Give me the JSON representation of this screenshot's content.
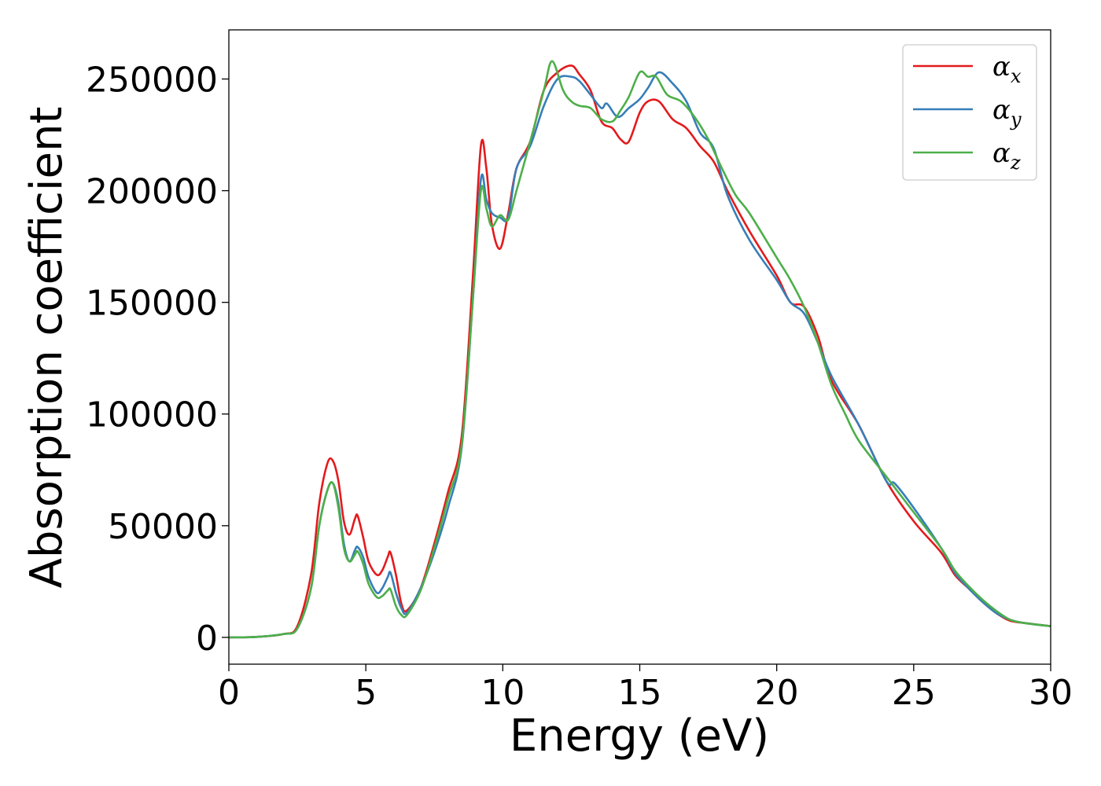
{
  "chart_data": {
    "type": "line",
    "title": "",
    "xlabel": "Energy (eV)",
    "ylabel": "Absorption coefficient",
    "xlim": [
      0,
      30
    ],
    "ylim": [
      -12000,
      272000
    ],
    "xticks": [
      0,
      5,
      10,
      15,
      20,
      25,
      30
    ],
    "yticks": [
      0,
      50000,
      100000,
      150000,
      200000,
      250000
    ],
    "grid": false,
    "legend_position": "top-right",
    "series": [
      {
        "name": "α",
        "name_subscript": "x",
        "color": "#e41a1c",
        "points": [
          [
            0,
            0
          ],
          [
            1,
            200
          ],
          [
            2,
            1500
          ],
          [
            2.5,
            5000
          ],
          [
            3,
            28000
          ],
          [
            3.3,
            60000
          ],
          [
            3.6,
            78000
          ],
          [
            3.8,
            79000
          ],
          [
            4,
            70000
          ],
          [
            4.2,
            52000
          ],
          [
            4.4,
            46000
          ],
          [
            4.6,
            53000
          ],
          [
            4.7,
            54500
          ],
          [
            4.9,
            45000
          ],
          [
            5.1,
            34000
          ],
          [
            5.4,
            28000
          ],
          [
            5.6,
            30000
          ],
          [
            5.8,
            36000
          ],
          [
            5.9,
            38000
          ],
          [
            6.1,
            28000
          ],
          [
            6.3,
            15000
          ],
          [
            6.5,
            12000
          ],
          [
            7,
            22000
          ],
          [
            7.5,
            42000
          ],
          [
            8,
            65000
          ],
          [
            8.5,
            90000
          ],
          [
            8.9,
            160000
          ],
          [
            9.2,
            220000
          ],
          [
            9.4,
            210000
          ],
          [
            9.6,
            185000
          ],
          [
            9.9,
            174000
          ],
          [
            10.2,
            190000
          ],
          [
            10.5,
            210000
          ],
          [
            11,
            222000
          ],
          [
            11.5,
            245000
          ],
          [
            12,
            253000
          ],
          [
            12.5,
            256000
          ],
          [
            12.8,
            252000
          ],
          [
            13.2,
            245000
          ],
          [
            13.6,
            231000
          ],
          [
            14,
            228000
          ],
          [
            14.3,
            223000
          ],
          [
            14.6,
            222000
          ],
          [
            15,
            235000
          ],
          [
            15.3,
            240000
          ],
          [
            15.7,
            240000
          ],
          [
            16.2,
            232000
          ],
          [
            16.7,
            228000
          ],
          [
            17.2,
            220000
          ],
          [
            17.7,
            213000
          ],
          [
            18.2,
            200000
          ],
          [
            19,
            182000
          ],
          [
            20,
            162000
          ],
          [
            20.5,
            150000
          ],
          [
            21,
            148000
          ],
          [
            21.5,
            135000
          ],
          [
            22,
            115000
          ],
          [
            23,
            95000
          ],
          [
            24,
            70000
          ],
          [
            25,
            52000
          ],
          [
            26,
            38000
          ],
          [
            26.5,
            28000
          ],
          [
            27,
            22000
          ],
          [
            27.5,
            16000
          ],
          [
            28,
            11000
          ],
          [
            28.5,
            7500
          ],
          [
            29,
            6500
          ],
          [
            30,
            5000
          ]
        ]
      },
      {
        "name": "α",
        "name_subscript": "y",
        "color": "#377eb8",
        "points": [
          [
            0,
            0
          ],
          [
            1,
            200
          ],
          [
            2,
            1500
          ],
          [
            2.5,
            4000
          ],
          [
            3,
            22000
          ],
          [
            3.3,
            50000
          ],
          [
            3.6,
            66000
          ],
          [
            3.8,
            69000
          ],
          [
            4,
            60000
          ],
          [
            4.2,
            42000
          ],
          [
            4.4,
            34000
          ],
          [
            4.6,
            39000
          ],
          [
            4.7,
            40500
          ],
          [
            4.9,
            36000
          ],
          [
            5.1,
            27000
          ],
          [
            5.4,
            20000
          ],
          [
            5.6,
            22000
          ],
          [
            5.8,
            27000
          ],
          [
            5.9,
            29000
          ],
          [
            6.1,
            20000
          ],
          [
            6.3,
            13000
          ],
          [
            6.5,
            11000
          ],
          [
            7,
            22000
          ],
          [
            7.5,
            38000
          ],
          [
            8,
            58000
          ],
          [
            8.5,
            85000
          ],
          [
            8.9,
            150000
          ],
          [
            9.2,
            205000
          ],
          [
            9.4,
            196000
          ],
          [
            9.6,
            190000
          ],
          [
            9.9,
            188000
          ],
          [
            10.2,
            188000
          ],
          [
            10.5,
            210000
          ],
          [
            11,
            220000
          ],
          [
            11.5,
            238000
          ],
          [
            12,
            250000
          ],
          [
            12.5,
            251000
          ],
          [
            12.8,
            249000
          ],
          [
            13.2,
            243000
          ],
          [
            13.6,
            237000
          ],
          [
            13.8,
            239000
          ],
          [
            14.2,
            233000
          ],
          [
            14.6,
            237000
          ],
          [
            15,
            241000
          ],
          [
            15.3,
            246000
          ],
          [
            15.7,
            253000
          ],
          [
            16.2,
            248000
          ],
          [
            16.7,
            240000
          ],
          [
            17.2,
            226000
          ],
          [
            17.7,
            219000
          ],
          [
            18.2,
            198000
          ],
          [
            19,
            178000
          ],
          [
            20,
            160000
          ],
          [
            20.5,
            150000
          ],
          [
            21,
            145000
          ],
          [
            21.5,
            132000
          ],
          [
            22,
            117000
          ],
          [
            23,
            95000
          ],
          [
            24,
            70000
          ],
          [
            24.3,
            69000
          ],
          [
            25,
            58000
          ],
          [
            26,
            40000
          ],
          [
            26.5,
            29000
          ],
          [
            27,
            22000
          ],
          [
            27.5,
            16000
          ],
          [
            28,
            11000
          ],
          [
            28.5,
            8000
          ],
          [
            29,
            6500
          ],
          [
            30,
            5000
          ]
        ]
      },
      {
        "name": "α",
        "name_subscript": "z",
        "color": "#4daf4a",
        "points": [
          [
            0,
            0
          ],
          [
            1,
            200
          ],
          [
            2,
            1500
          ],
          [
            2.5,
            4000
          ],
          [
            3,
            22000
          ],
          [
            3.3,
            50000
          ],
          [
            3.6,
            66000
          ],
          [
            3.8,
            69000
          ],
          [
            4,
            58000
          ],
          [
            4.2,
            40000
          ],
          [
            4.4,
            34000
          ],
          [
            4.6,
            37000
          ],
          [
            4.7,
            38500
          ],
          [
            4.9,
            33000
          ],
          [
            5.1,
            24000
          ],
          [
            5.4,
            18000
          ],
          [
            5.6,
            18500
          ],
          [
            5.8,
            21000
          ],
          [
            5.9,
            21500
          ],
          [
            6.1,
            14000
          ],
          [
            6.3,
            10000
          ],
          [
            6.5,
            10000
          ],
          [
            7,
            21000
          ],
          [
            7.5,
            40000
          ],
          [
            8,
            62000
          ],
          [
            8.5,
            86000
          ],
          [
            8.9,
            150000
          ],
          [
            9.2,
            200000
          ],
          [
            9.4,
            192000
          ],
          [
            9.6,
            184000
          ],
          [
            9.9,
            189000
          ],
          [
            10.2,
            187000
          ],
          [
            10.5,
            200000
          ],
          [
            11,
            222000
          ],
          [
            11.5,
            245000
          ],
          [
            11.8,
            258000
          ],
          [
            12.2,
            245000
          ],
          [
            12.5,
            240000
          ],
          [
            12.8,
            238000
          ],
          [
            13.2,
            237000
          ],
          [
            13.6,
            232000
          ],
          [
            14,
            231000
          ],
          [
            14.3,
            236000
          ],
          [
            14.6,
            242000
          ],
          [
            15,
            253000
          ],
          [
            15.3,
            251000
          ],
          [
            15.6,
            251000
          ],
          [
            16,
            243000
          ],
          [
            16.5,
            240000
          ],
          [
            17,
            233000
          ],
          [
            17.5,
            223000
          ],
          [
            18,
            210000
          ],
          [
            18.5,
            198000
          ],
          [
            19,
            190000
          ],
          [
            20,
            170000
          ],
          [
            20.5,
            160000
          ],
          [
            21,
            148000
          ],
          [
            21.5,
            132000
          ],
          [
            22,
            113000
          ],
          [
            22.5,
            100000
          ],
          [
            23,
            88000
          ],
          [
            24,
            72000
          ],
          [
            25,
            56000
          ],
          [
            26,
            40000
          ],
          [
            26.5,
            30000
          ],
          [
            27,
            23000
          ],
          [
            27.5,
            17000
          ],
          [
            28,
            12000
          ],
          [
            28.5,
            8000
          ],
          [
            29,
            6500
          ],
          [
            30,
            5000
          ]
        ]
      }
    ]
  }
}
